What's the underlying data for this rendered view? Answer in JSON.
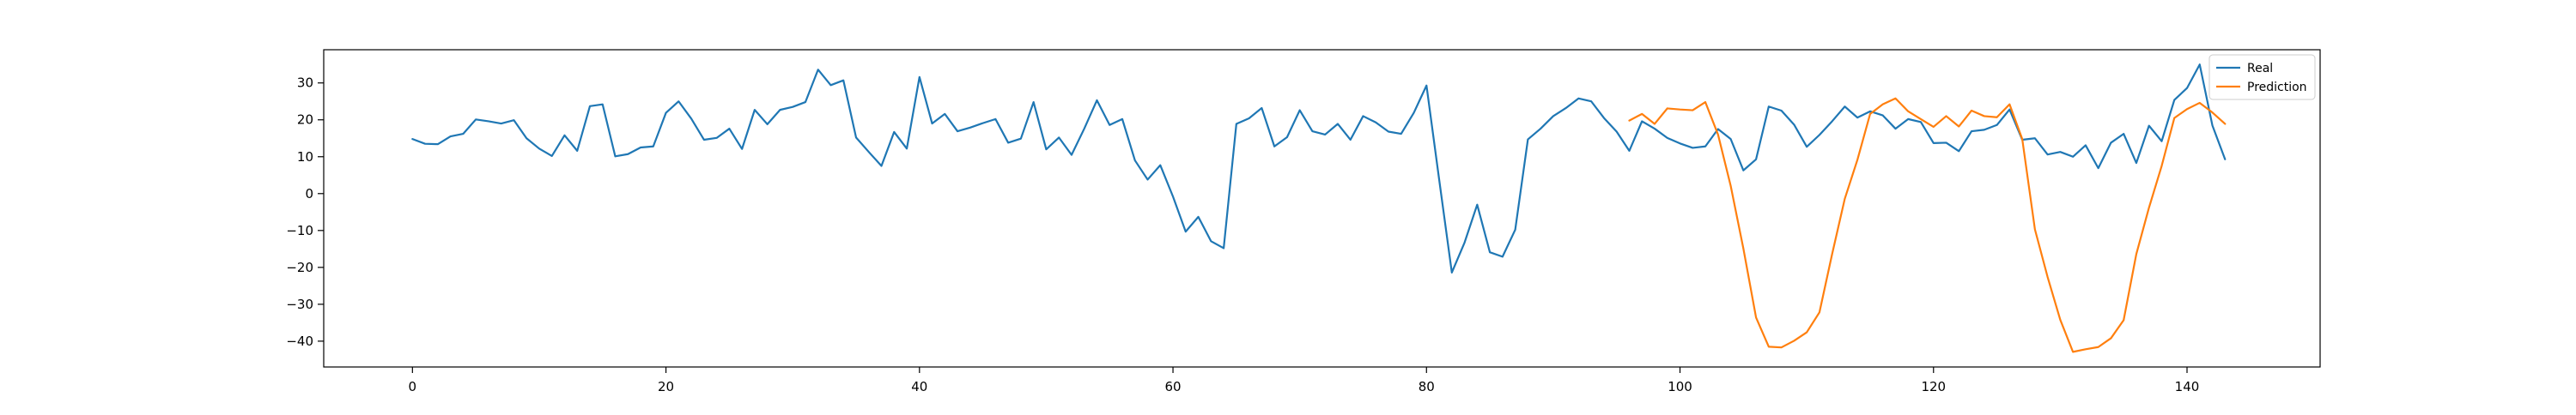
{
  "chart_data": {
    "type": "line",
    "title": "",
    "xlabel": "",
    "ylabel": "",
    "xlim": [
      -7,
      150.5
    ],
    "ylim": [
      -47,
      39
    ],
    "grid": false,
    "legend_position": "top-right",
    "xticks": [
      0,
      20,
      40,
      60,
      80,
      100,
      120,
      140
    ],
    "yticks": [
      -40,
      -30,
      -20,
      -10,
      0,
      10,
      20,
      30
    ],
    "series": [
      {
        "name": "Real",
        "color": "#1f77b4",
        "x": [
          0,
          1,
          2,
          3,
          4,
          5,
          6,
          7,
          8,
          9,
          10,
          11,
          12,
          13,
          14,
          15,
          16,
          17,
          18,
          19,
          20,
          21,
          22,
          23,
          24,
          25,
          26,
          27,
          28,
          29,
          30,
          31,
          32,
          33,
          34,
          35,
          36,
          37,
          38,
          39,
          40,
          41,
          42,
          43,
          44,
          45,
          46,
          47,
          48,
          49,
          50,
          51,
          52,
          53,
          54,
          55,
          56,
          57,
          58,
          59,
          60,
          61,
          62,
          63,
          64,
          65,
          66,
          67,
          68,
          69,
          70,
          71,
          72,
          73,
          74,
          75,
          76,
          77,
          78,
          79,
          80,
          81,
          82,
          83,
          84,
          85,
          86,
          87,
          88,
          89,
          90,
          91,
          92,
          93,
          94,
          95,
          96,
          97,
          98,
          99,
          100,
          101,
          102,
          103,
          104,
          105,
          106,
          107,
          108,
          109,
          110,
          111,
          112,
          113,
          114,
          115,
          116,
          117,
          118,
          119,
          120,
          121,
          122,
          123,
          124,
          125,
          126,
          127,
          128,
          129,
          130,
          131,
          132,
          133,
          134,
          135,
          136,
          137,
          138,
          139,
          140,
          141,
          142,
          143
        ],
        "y": [
          14.8,
          13.5,
          13.4,
          15.5,
          16.2,
          20.1,
          19.6,
          19.0,
          19.9,
          15.0,
          12.2,
          10.2,
          15.8,
          11.6,
          23.7,
          24.2,
          10.1,
          10.7,
          12.5,
          12.8,
          21.9,
          25.0,
          20.3,
          14.6,
          15.1,
          17.6,
          12.1,
          22.7,
          18.8,
          22.7,
          23.5,
          24.8,
          33.6,
          29.4,
          30.7,
          15.2,
          11.3,
          7.5,
          16.7,
          12.2,
          31.6,
          19.0,
          21.6,
          16.9,
          17.9,
          19.1,
          20.2,
          13.8,
          14.9,
          24.8,
          12.0,
          15.2,
          10.5,
          17.6,
          25.3,
          18.6,
          20.2,
          9.0,
          3.8,
          7.7,
          -0.8,
          -10.3,
          -6.3,
          -12.9,
          -14.8,
          18.9,
          20.4,
          23.2,
          12.8,
          15.3,
          22.6,
          16.9,
          16.0,
          18.9,
          14.6,
          21.0,
          19.3,
          16.8,
          16.2,
          21.9,
          29.3,
          3.8,
          -21.4,
          -13.3,
          -3.0,
          -15.9,
          -17.1,
          -9.8,
          14.7,
          17.6,
          21.0,
          23.2,
          25.8,
          25.0,
          20.5,
          16.8,
          11.6,
          19.6,
          17.6,
          15.1,
          13.6,
          12.4,
          12.8,
          17.5,
          14.8,
          6.3,
          9.3,
          23.6,
          22.5,
          18.7,
          12.7,
          15.9,
          19.6,
          23.6,
          20.6,
          22.3,
          21.2,
          17.6,
          20.2,
          19.4,
          13.7,
          13.8,
          11.5,
          16.9,
          17.3,
          18.6,
          22.8,
          14.6,
          15.0,
          10.6,
          11.3,
          10.0,
          13.1,
          6.9,
          13.8,
          16.2,
          8.3,
          18.4,
          14.2,
          25.4,
          28.6,
          35.0,
          18.5,
          9.3
        ]
      },
      {
        "name": "Prediction",
        "color": "#ff7f0e",
        "x": [
          96,
          97,
          98,
          99,
          100,
          101,
          102,
          103,
          104,
          105,
          106,
          107,
          108,
          109,
          110,
          111,
          112,
          113,
          114,
          115,
          116,
          117,
          118,
          119,
          120,
          121,
          122,
          123,
          124,
          125,
          126,
          127,
          128,
          129,
          130,
          131,
          132,
          133,
          134,
          135,
          136,
          137,
          138,
          139,
          140,
          141,
          142,
          143
        ],
        "y": [
          19.8,
          21.6,
          18.9,
          23.1,
          22.8,
          22.6,
          24.8,
          16.0,
          2.1,
          -14.9,
          -33.6,
          -41.5,
          -41.7,
          -39.9,
          -37.6,
          -32.2,
          -16.4,
          -1.4,
          9.2,
          21.6,
          24.2,
          25.8,
          22.3,
          20.2,
          18.1,
          21.0,
          18.2,
          22.5,
          21.0,
          20.7,
          24.2,
          14.8,
          -9.7,
          -22.6,
          -34.2,
          -42.9,
          -42.2,
          -41.6,
          -39.2,
          -34.3,
          -16.4,
          -3.8,
          7.5,
          20.5,
          22.9,
          24.6,
          22.0,
          18.9
        ]
      }
    ]
  }
}
